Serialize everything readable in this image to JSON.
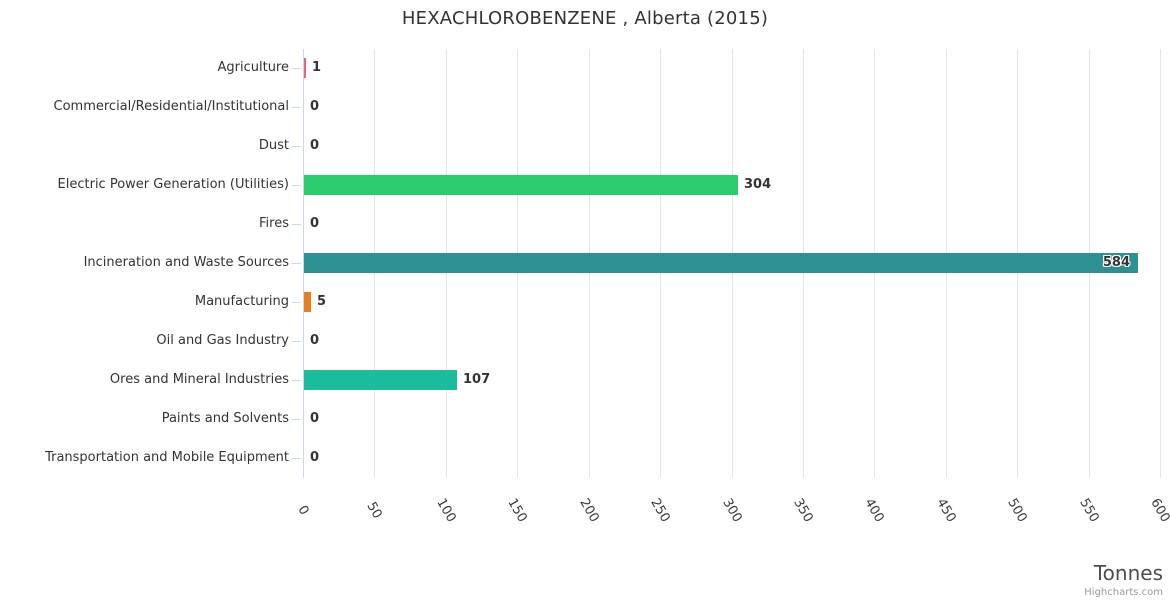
{
  "chart": {
    "credits_label": "Highcharts.com",
    "background_color": "#ffffff"
  },
  "chart_data": {
    "type": "bar",
    "title": "HEXACHLOROBENZENE , Alberta (2015)",
    "categories": [
      "Agriculture",
      "Commercial/Residential/Institutional",
      "Dust",
      "Electric Power Generation (Utilities)",
      "Fires",
      "Incineration and Waste Sources",
      "Manufacturing",
      "Oil and Gas Industry",
      "Ores and Mineral Industries",
      "Paints and Solvents",
      "Transportation and Mobile Equipment"
    ],
    "values": [
      1,
      0,
      0,
      304,
      0,
      584,
      5,
      0,
      107,
      0,
      0
    ],
    "data_labels": [
      "1",
      "0",
      "0",
      "304",
      "0",
      "584",
      "5",
      "0",
      "107",
      "0",
      "0"
    ],
    "bar_colors": [
      "#ed5f81",
      null,
      null,
      "#2ecc71",
      null,
      "#2e9191",
      "#e67e22",
      null,
      "#1abc9c",
      null,
      null
    ],
    "xlabel": "Tonnes",
    "ylabel": "",
    "xlim": [
      0,
      600
    ],
    "x_ticks": [
      0,
      50,
      100,
      150,
      200,
      250,
      300,
      350,
      400,
      450,
      500,
      550,
      600
    ],
    "grid": true,
    "legend": false,
    "colors": {
      "grid_line": "#e6e6e6",
      "axis_line": "#ccd6eb",
      "label_color": "#333333",
      "axis_title_color": "#4d4d4d",
      "credits_color": "#999999"
    }
  }
}
